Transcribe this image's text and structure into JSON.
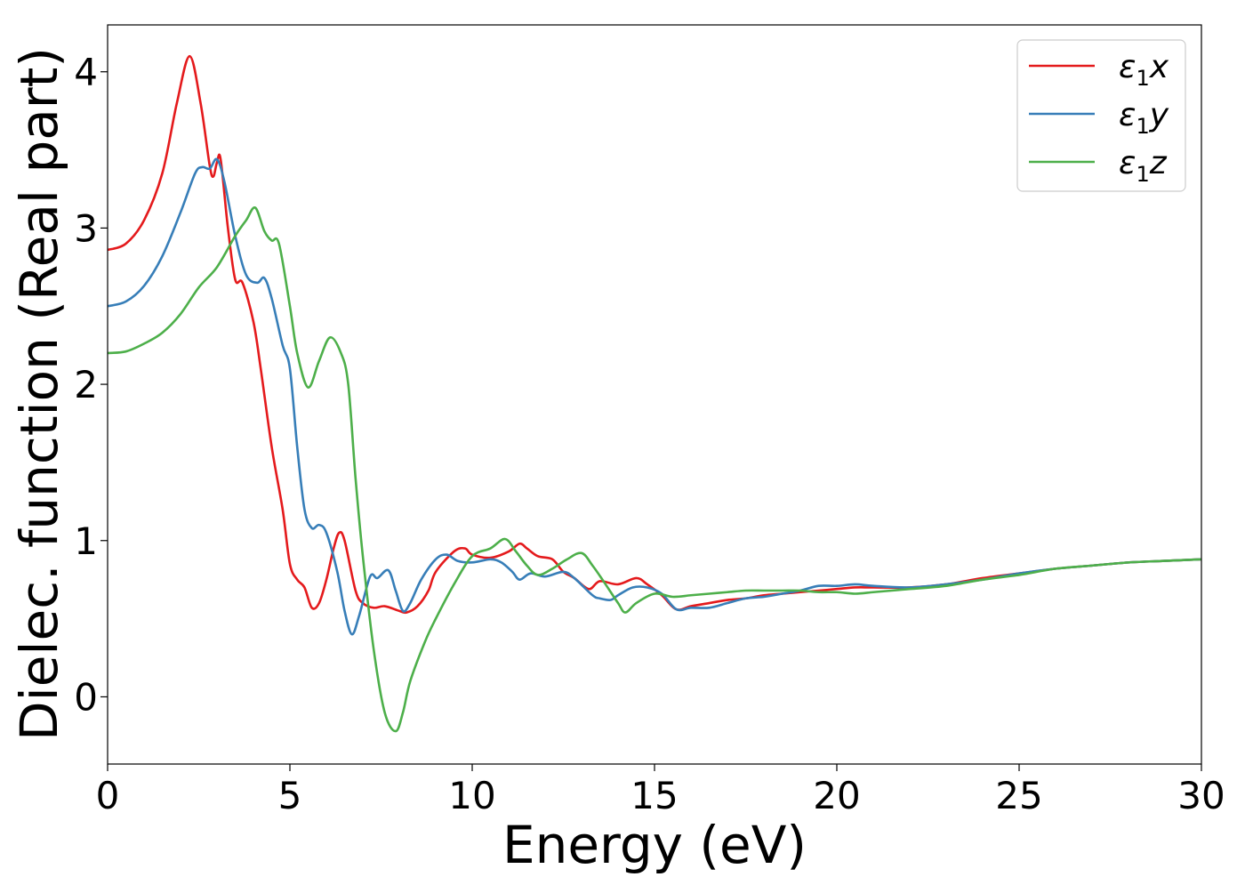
{
  "chart_data": {
    "type": "line",
    "xlabel": "Energy (eV)",
    "ylabel": "Dielec. function (Real part)",
    "xlim": [
      0,
      30
    ],
    "ylim": [
      -0.43,
      4.3
    ],
    "xticks": [
      "0",
      "5",
      "10",
      "15",
      "20",
      "25",
      "30"
    ],
    "yticks": [
      "0",
      "1",
      "2",
      "3",
      "4"
    ],
    "grid": false,
    "legend_position": "top-right",
    "series": [
      {
        "name": "ε₁x",
        "legend_main": "ε",
        "legend_sub": "1",
        "legend_suffix": "x",
        "color": "#e41a1c",
        "points": [
          [
            0,
            2.86
          ],
          [
            0.5,
            2.9
          ],
          [
            1.0,
            3.05
          ],
          [
            1.5,
            3.35
          ],
          [
            1.9,
            3.8
          ],
          [
            2.25,
            4.1
          ],
          [
            2.55,
            3.8
          ],
          [
            2.8,
            3.4
          ],
          [
            2.9,
            3.33
          ],
          [
            3.0,
            3.42
          ],
          [
            3.1,
            3.44
          ],
          [
            3.3,
            3.0
          ],
          [
            3.5,
            2.67
          ],
          [
            3.7,
            2.65
          ],
          [
            4.0,
            2.4
          ],
          [
            4.2,
            2.1
          ],
          [
            4.5,
            1.6
          ],
          [
            4.8,
            1.2
          ],
          [
            5.0,
            0.85
          ],
          [
            5.2,
            0.75
          ],
          [
            5.4,
            0.7
          ],
          [
            5.6,
            0.57
          ],
          [
            5.8,
            0.6
          ],
          [
            6.0,
            0.75
          ],
          [
            6.2,
            0.95
          ],
          [
            6.35,
            1.05
          ],
          [
            6.5,
            1.0
          ],
          [
            6.8,
            0.68
          ],
          [
            7.0,
            0.6
          ],
          [
            7.3,
            0.57
          ],
          [
            7.6,
            0.58
          ],
          [
            8.0,
            0.55
          ],
          [
            8.2,
            0.54
          ],
          [
            8.5,
            0.58
          ],
          [
            8.8,
            0.68
          ],
          [
            9.0,
            0.8
          ],
          [
            9.5,
            0.93
          ],
          [
            9.8,
            0.95
          ],
          [
            10.0,
            0.91
          ],
          [
            10.5,
            0.89
          ],
          [
            11.0,
            0.93
          ],
          [
            11.3,
            0.98
          ],
          [
            11.5,
            0.95
          ],
          [
            11.8,
            0.9
          ],
          [
            12.2,
            0.88
          ],
          [
            12.5,
            0.8
          ],
          [
            12.8,
            0.76
          ],
          [
            13.2,
            0.69
          ],
          [
            13.5,
            0.74
          ],
          [
            14.0,
            0.72
          ],
          [
            14.5,
            0.76
          ],
          [
            14.8,
            0.72
          ],
          [
            15.2,
            0.65
          ],
          [
            15.6,
            0.56
          ],
          [
            16.0,
            0.58
          ],
          [
            16.5,
            0.6
          ],
          [
            17.0,
            0.62
          ],
          [
            17.5,
            0.63
          ],
          [
            18.0,
            0.65
          ],
          [
            18.5,
            0.66
          ],
          [
            19.0,
            0.67
          ],
          [
            19.5,
            0.68
          ],
          [
            20.0,
            0.69
          ],
          [
            20.5,
            0.7
          ],
          [
            21.0,
            0.7
          ],
          [
            22.0,
            0.7
          ],
          [
            23.0,
            0.72
          ],
          [
            24.0,
            0.76
          ],
          [
            25.0,
            0.79
          ],
          [
            26.0,
            0.82
          ],
          [
            27.0,
            0.84
          ],
          [
            28.0,
            0.86
          ],
          [
            29.0,
            0.87
          ],
          [
            30.0,
            0.88
          ]
        ]
      },
      {
        "name": "ε₁y",
        "legend_main": "ε",
        "legend_sub": "1",
        "legend_suffix": "y",
        "color": "#377eb8",
        "points": [
          [
            0,
            2.5
          ],
          [
            0.5,
            2.53
          ],
          [
            1.0,
            2.63
          ],
          [
            1.5,
            2.82
          ],
          [
            2.0,
            3.1
          ],
          [
            2.4,
            3.35
          ],
          [
            2.6,
            3.39
          ],
          [
            2.8,
            3.38
          ],
          [
            3.0,
            3.44
          ],
          [
            3.2,
            3.3
          ],
          [
            3.5,
            2.95
          ],
          [
            3.8,
            2.7
          ],
          [
            4.1,
            2.65
          ],
          [
            4.3,
            2.68
          ],
          [
            4.5,
            2.55
          ],
          [
            4.8,
            2.25
          ],
          [
            5.0,
            2.1
          ],
          [
            5.2,
            1.6
          ],
          [
            5.4,
            1.2
          ],
          [
            5.6,
            1.08
          ],
          [
            5.8,
            1.1
          ],
          [
            6.0,
            1.05
          ],
          [
            6.3,
            0.8
          ],
          [
            6.5,
            0.55
          ],
          [
            6.7,
            0.4
          ],
          [
            6.9,
            0.52
          ],
          [
            7.2,
            0.77
          ],
          [
            7.4,
            0.76
          ],
          [
            7.7,
            0.81
          ],
          [
            7.9,
            0.68
          ],
          [
            8.1,
            0.55
          ],
          [
            8.3,
            0.6
          ],
          [
            8.6,
            0.75
          ],
          [
            9.0,
            0.88
          ],
          [
            9.3,
            0.91
          ],
          [
            9.6,
            0.87
          ],
          [
            10.0,
            0.86
          ],
          [
            10.5,
            0.88
          ],
          [
            10.8,
            0.86
          ],
          [
            11.1,
            0.8
          ],
          [
            11.3,
            0.75
          ],
          [
            11.6,
            0.79
          ],
          [
            12.0,
            0.77
          ],
          [
            12.5,
            0.8
          ],
          [
            12.8,
            0.76
          ],
          [
            13.3,
            0.65
          ],
          [
            13.5,
            0.63
          ],
          [
            13.8,
            0.62
          ],
          [
            14.0,
            0.65
          ],
          [
            14.4,
            0.7
          ],
          [
            14.8,
            0.7
          ],
          [
            15.2,
            0.66
          ],
          [
            15.6,
            0.56
          ],
          [
            16.0,
            0.57
          ],
          [
            16.5,
            0.57
          ],
          [
            17.0,
            0.6
          ],
          [
            17.5,
            0.63
          ],
          [
            18.0,
            0.64
          ],
          [
            18.5,
            0.66
          ],
          [
            19.0,
            0.68
          ],
          [
            19.5,
            0.71
          ],
          [
            20.0,
            0.71
          ],
          [
            20.5,
            0.72
          ],
          [
            21.0,
            0.71
          ],
          [
            22.0,
            0.7
          ],
          [
            23.0,
            0.72
          ],
          [
            24.0,
            0.75
          ],
          [
            25.0,
            0.79
          ],
          [
            26.0,
            0.82
          ],
          [
            27.0,
            0.84
          ],
          [
            28.0,
            0.86
          ],
          [
            29.0,
            0.87
          ],
          [
            30.0,
            0.88
          ]
        ]
      },
      {
        "name": "ε₁z",
        "legend_main": "ε",
        "legend_sub": "1",
        "legend_suffix": "z",
        "color": "#4daf4a",
        "points": [
          [
            0,
            2.2
          ],
          [
            0.5,
            2.21
          ],
          [
            1.0,
            2.26
          ],
          [
            1.5,
            2.33
          ],
          [
            2.0,
            2.45
          ],
          [
            2.5,
            2.62
          ],
          [
            3.0,
            2.75
          ],
          [
            3.5,
            2.95
          ],
          [
            3.8,
            3.05
          ],
          [
            4.05,
            3.13
          ],
          [
            4.3,
            2.98
          ],
          [
            4.5,
            2.92
          ],
          [
            4.7,
            2.9
          ],
          [
            5.0,
            2.5
          ],
          [
            5.2,
            2.2
          ],
          [
            5.5,
            1.98
          ],
          [
            5.8,
            2.15
          ],
          [
            6.1,
            2.3
          ],
          [
            6.4,
            2.2
          ],
          [
            6.6,
            2.0
          ],
          [
            6.8,
            1.4
          ],
          [
            7.0,
            0.9
          ],
          [
            7.3,
            0.3
          ],
          [
            7.6,
            -0.1
          ],
          [
            7.9,
            -0.22
          ],
          [
            8.1,
            -0.1
          ],
          [
            8.3,
            0.1
          ],
          [
            8.7,
            0.35
          ],
          [
            9.0,
            0.5
          ],
          [
            9.5,
            0.72
          ],
          [
            10.0,
            0.9
          ],
          [
            10.5,
            0.95
          ],
          [
            10.9,
            1.01
          ],
          [
            11.2,
            0.93
          ],
          [
            11.5,
            0.84
          ],
          [
            11.8,
            0.78
          ],
          [
            12.2,
            0.82
          ],
          [
            12.6,
            0.88
          ],
          [
            13.0,
            0.92
          ],
          [
            13.3,
            0.84
          ],
          [
            13.6,
            0.74
          ],
          [
            14.0,
            0.6
          ],
          [
            14.2,
            0.54
          ],
          [
            14.5,
            0.6
          ],
          [
            15.0,
            0.66
          ],
          [
            15.5,
            0.64
          ],
          [
            16.0,
            0.65
          ],
          [
            16.5,
            0.66
          ],
          [
            17.0,
            0.67
          ],
          [
            17.5,
            0.68
          ],
          [
            18.0,
            0.68
          ],
          [
            18.5,
            0.68
          ],
          [
            19.0,
            0.68
          ],
          [
            19.5,
            0.67
          ],
          [
            20.0,
            0.67
          ],
          [
            20.5,
            0.66
          ],
          [
            21.0,
            0.67
          ],
          [
            21.5,
            0.68
          ],
          [
            22.0,
            0.69
          ],
          [
            23.0,
            0.71
          ],
          [
            24.0,
            0.75
          ],
          [
            25.0,
            0.78
          ],
          [
            26.0,
            0.82
          ],
          [
            27.0,
            0.84
          ],
          [
            28.0,
            0.86
          ],
          [
            29.0,
            0.87
          ],
          [
            30.0,
            0.88
          ]
        ]
      }
    ]
  }
}
